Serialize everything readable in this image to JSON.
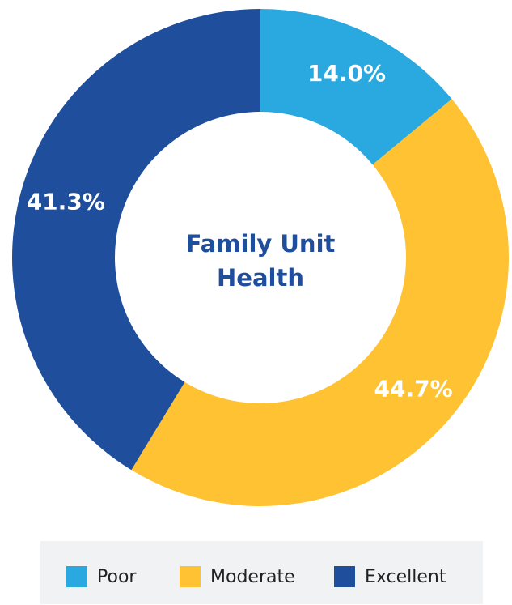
{
  "chart_data": {
    "type": "donut",
    "title": "Family Unit Health",
    "categories": [
      "Poor",
      "Moderate",
      "Excellent"
    ],
    "values": [
      14.0,
      44.7,
      41.3
    ],
    "value_labels": [
      "14.0%",
      "44.7%",
      "41.3%"
    ],
    "colors": [
      "#29a9e0",
      "#fec232",
      "#1f4e9c"
    ],
    "legend": "bottom"
  }
}
